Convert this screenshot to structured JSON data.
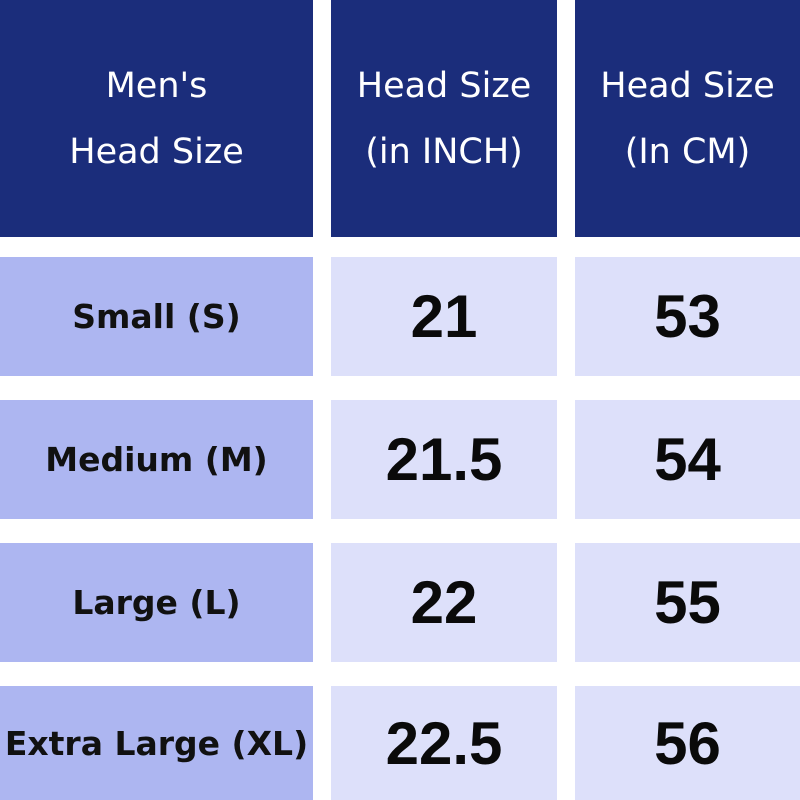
{
  "table": {
    "header": [
      [
        "Men's",
        "Head Size"
      ],
      [
        "Head Size",
        "(in INCH)"
      ],
      [
        "Head Size",
        "(In CM)"
      ]
    ],
    "rows": [
      [
        "Small (S)",
        21,
        53
      ],
      [
        "Medium (M)",
        21.5,
        54
      ],
      [
        "Large (L)",
        22,
        55
      ],
      [
        "Extra Large (XL)",
        22.5,
        56
      ]
    ]
  }
}
